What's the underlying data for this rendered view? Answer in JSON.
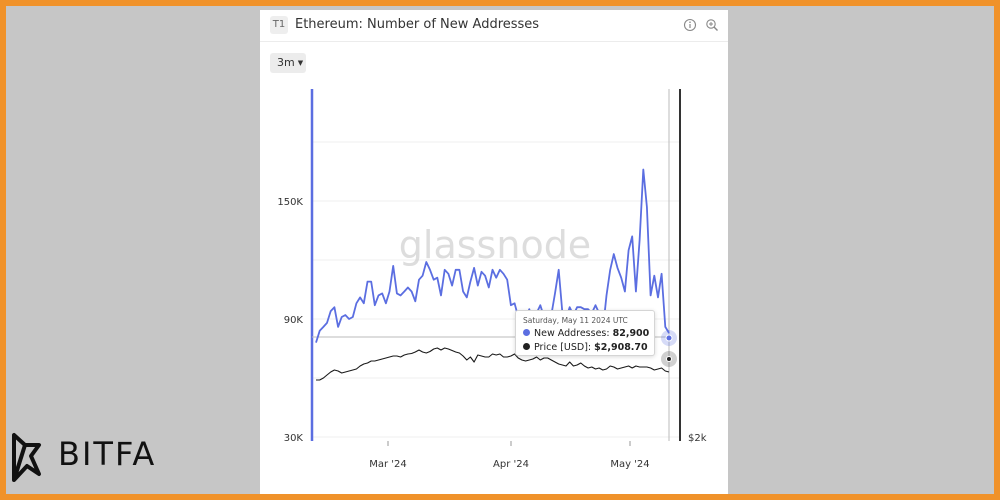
{
  "card": {
    "badge": "T1",
    "title": "Ethereum: Number of New Addresses",
    "info_icon": "info-icon",
    "zoom_icon": "zoom-icon",
    "range_label": "3m"
  },
  "watermark": "glassnode",
  "tooltip": {
    "date": "Saturday, May 11 2024 UTC",
    "row1_label": "New Addresses:",
    "row1_value": "82,900",
    "row2_label": "Price [USD]:",
    "row2_value": "$2,908.70"
  },
  "logo": {
    "text": "BITFA"
  },
  "colors": {
    "addresses": "#5b6ee1",
    "price": "#1a1a1a",
    "border": "#f0922a"
  },
  "chart_data": {
    "type": "line",
    "title": "Ethereum: Number of New Addresses",
    "y_left": {
      "ticks": [
        "150K",
        "90K",
        "30K"
      ],
      "range": [
        30000,
        150000
      ]
    },
    "y_right": {
      "ticks": [
        "$2k"
      ]
    },
    "x_ticks": [
      "Mar '24",
      "Apr '24",
      "May '24"
    ],
    "grid": true,
    "series": [
      {
        "name": "New Addresses",
        "axis": "left",
        "values": [
          78000,
          84000,
          86000,
          88000,
          94000,
          96000,
          86000,
          91000,
          92000,
          90000,
          91000,
          98000,
          101000,
          98000,
          109000,
          109000,
          97000,
          102000,
          103000,
          98000,
          104000,
          117000,
          103000,
          102000,
          104000,
          106000,
          104000,
          99000,
          110000,
          112000,
          119000,
          115000,
          110000,
          111000,
          102000,
          115000,
          113000,
          107000,
          115000,
          115000,
          104000,
          101000,
          109000,
          116000,
          107000,
          114000,
          112000,
          106000,
          115000,
          111000,
          115000,
          113000,
          110000,
          97000,
          98000,
          91000,
          93000,
          91000,
          95000,
          88000,
          93000,
          97000,
          91000,
          93000,
          92000,
          103000,
          115000,
          93000,
          90000,
          96000,
          92000,
          96000,
          96000,
          95000,
          95000,
          93000,
          97000,
          93000,
          84000,
          102000,
          115000,
          123000,
          116000,
          111000,
          104000,
          125000,
          132000,
          104000,
          130000,
          166000,
          147000,
          102000,
          112000,
          101000,
          113000,
          86000,
          82900
        ]
      },
      {
        "name": "Price [USD]",
        "axis": "right",
        "values": [
          3.5,
          3.5,
          3.3,
          3.0,
          2.7,
          2.5,
          2.6,
          2.8,
          2.7,
          2.6,
          2.5,
          2.4,
          2.1,
          1.9,
          1.8,
          1.6,
          1.6,
          1.5,
          1.4,
          1.3,
          1.2,
          1.1,
          1.1,
          1.2,
          1.0,
          0.9,
          0.85,
          0.7,
          0.5,
          0.7,
          0.8,
          0.65,
          0.4,
          0.3,
          0.5,
          0.3,
          0.4,
          0.55,
          0.7,
          0.8,
          1.1,
          1.5,
          1.2,
          1.7,
          1.0,
          1.1,
          1.2,
          1.2,
          0.9,
          1.0,
          0.9,
          1.2,
          1.2,
          1.1,
          0.9,
          1.3,
          1.5,
          1.6,
          1.5,
          1.4,
          1.2,
          1.5,
          1.3,
          1.3,
          1.5,
          1.7,
          1.9,
          2.0,
          2.1,
          1.7,
          2.1,
          2.0,
          1.8,
          2.1,
          2.3,
          2.2,
          2.4,
          2.3,
          2.5,
          2.4,
          2.1,
          2.2,
          2.4,
          2.3,
          2.2,
          2.1,
          2.3,
          2.1,
          2.2,
          2.2,
          2.2,
          2.3,
          2.5,
          2.4,
          2.3,
          2.6,
          2.7
        ]
      }
    ],
    "highlight": {
      "date": "Saturday, May 11 2024 UTC",
      "new_addresses": 82900,
      "price_usd": 2908.7
    }
  }
}
